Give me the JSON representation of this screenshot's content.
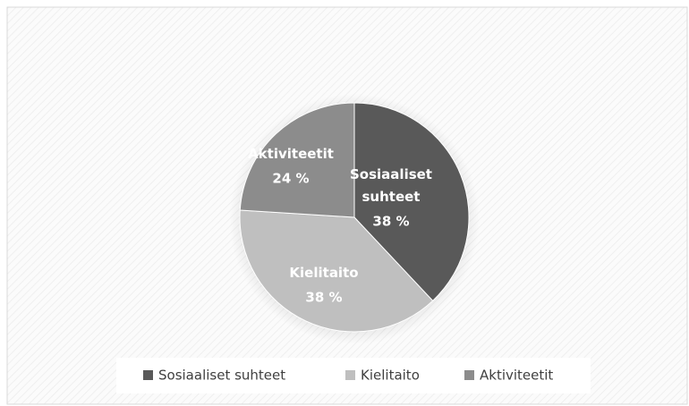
{
  "chart_data": {
    "type": "pie",
    "categories": [
      "Sosiaaliset suhteet",
      "Kielitaito",
      "Aktiviteetit"
    ],
    "values": [
      38,
      38,
      24
    ],
    "value_labels": [
      "38 %",
      "38 %",
      "24 %"
    ],
    "colors": [
      "#595959",
      "#bfbfbf",
      "#8c8c8c"
    ],
    "legend": "bottom"
  }
}
